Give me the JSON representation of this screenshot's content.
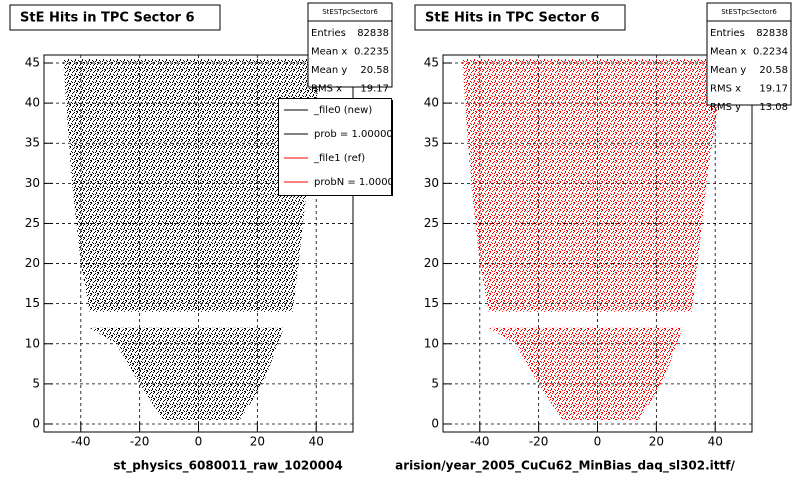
{
  "chart_data": [
    {
      "type": "scatter",
      "title": "StE Hits in TPC Sector 6",
      "x_label": "st_physics_6080011_raw_1020004",
      "xlim": [
        -52.5,
        52.5
      ],
      "ylim": [
        -1,
        46
      ],
      "xticks": [
        -40,
        -20,
        0,
        20,
        40
      ],
      "yticks": [
        0,
        5,
        10,
        15,
        20,
        25,
        30,
        35,
        40,
        45
      ],
      "grid": true,
      "series": [
        {
          "color": "#000000",
          "x": [
            -46,
            42,
            40,
            37,
            34,
            32,
            -37,
            -40,
            -43,
            -45,
            null,
            -37,
            29,
            27,
            22,
            14,
            -12,
            -20,
            -28
          ],
          "y": [
            45.5,
            45.5,
            40,
            30,
            20,
            14,
            14,
            20,
            30,
            40,
            null,
            12,
            12,
            10,
            5,
            0.5,
            0.5,
            5,
            10
          ]
        }
      ],
      "stats": {
        "title": "StESTpcSector6",
        "rows": [
          {
            "label": "Entries",
            "value": 82838
          },
          {
            "label": "Mean x",
            "value": 0.2235
          },
          {
            "label": "Mean y",
            "value": 20.58
          },
          {
            "label": "RMS x",
            "value": 19.17
          }
        ]
      },
      "legend": [
        {
          "label": "_file0 (new)",
          "color": "#000000"
        },
        {
          "label": "prob = 1.000000",
          "color": "#000000"
        },
        {
          "label": "_file1 (ref)",
          "color": "#ff0000"
        },
        {
          "label": "probN = 1.000000",
          "color": "#ff0000"
        }
      ]
    },
    {
      "type": "scatter",
      "title": "StE Hits in TPC Sector 6",
      "x_label": "arision/year_2005_CuCu62_MinBias_daq_sl302.ittf/",
      "xlim": [
        -52.5,
        52.5
      ],
      "ylim": [
        -1,
        46
      ],
      "xticks": [
        -40,
        -20,
        0,
        20,
        40
      ],
      "yticks": [
        0,
        5,
        10,
        15,
        20,
        25,
        30,
        35,
        40,
        45
      ],
      "grid": true,
      "series": [
        {
          "color": "#ff0000",
          "x": [
            -46,
            42,
            41,
            37,
            34,
            32,
            -37,
            -40,
            -43,
            -45,
            null,
            -37,
            29,
            27,
            22,
            14,
            -12,
            -20,
            -28
          ],
          "y": [
            45.5,
            45.5,
            40,
            30,
            20,
            14,
            14,
            20,
            30,
            40,
            null,
            12,
            12,
            10,
            5,
            0.5,
            0.5,
            5,
            10
          ]
        }
      ],
      "stats": {
        "title": "StESTpcSector6",
        "rows": [
          {
            "label": "Entries",
            "value": 82838
          },
          {
            "label": "Mean x",
            "value": 0.2234
          },
          {
            "label": "Mean y",
            "value": 20.58
          },
          {
            "label": "RMS x",
            "value": 19.17
          },
          {
            "label": "RMS y",
            "value": 13.08
          }
        ]
      }
    }
  ]
}
